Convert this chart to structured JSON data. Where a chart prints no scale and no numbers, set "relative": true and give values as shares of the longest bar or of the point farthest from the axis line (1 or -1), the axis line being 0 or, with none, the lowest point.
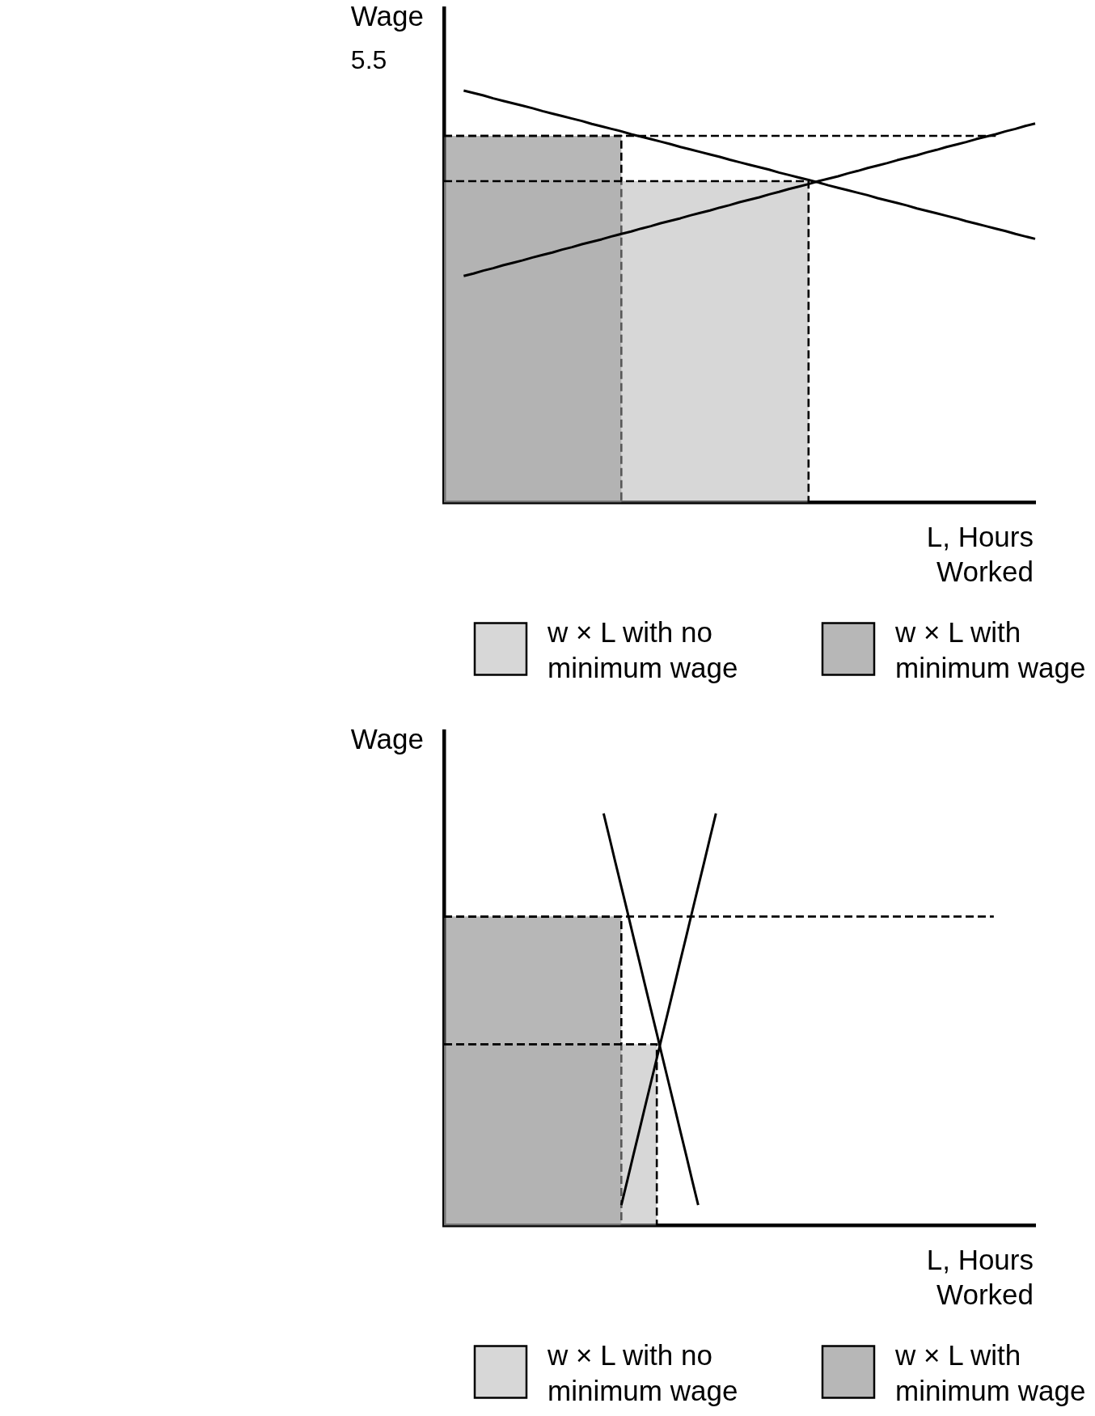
{
  "chart_data": [
    {
      "type": "line",
      "relative": true,
      "title": "5.5",
      "ylabel": "Wage",
      "xlabel": "L, Hours Worked",
      "legend": "bottom",
      "categories": [
        null,
        null,
        null,
        null,
        null,
        null,
        null,
        null,
        null,
        null,
        null,
        null,
        null,
        null,
        null,
        null,
        null,
        null,
        null,
        null,
        null,
        null,
        null,
        null,
        null,
        null,
        null,
        null,
        null,
        null,
        null,
        null,
        null,
        null,
        null,
        null,
        null,
        null,
        null,
        null,
        null,
        null,
        null,
        null,
        null,
        null,
        null,
        null,
        null,
        null,
        null,
        null,
        null,
        null,
        null,
        null,
        null,
        null,
        null,
        null,
        null
      ],
      "series": [
        {
          "name": "w × L with no minimum wage",
          "type": "area",
          "color": "#b0b0b0",
          "line_style": "dashed",
          "values": [
            0.78,
            0.78,
            0.78,
            0.78,
            0.78,
            0.78,
            0.78,
            0.78,
            0.78,
            0.78,
            0.78,
            0.78,
            0.78,
            0.78,
            0.78,
            0.78,
            0.78,
            0.78,
            0.78,
            0.78,
            0.78,
            0.78,
            0.78,
            0.78,
            0.78,
            0.78,
            0.78,
            0.78,
            0.78,
            0.78,
            0.78,
            0.78,
            0.78,
            0.78,
            0.78,
            0.78,
            0.78,
            0.78,
            0,
            null,
            null,
            null,
            null,
            null,
            null,
            null,
            null,
            null,
            null,
            null,
            null,
            null,
            null,
            null,
            null,
            null,
            null,
            null,
            null,
            null,
            null
          ]
        },
        {
          "name": "w × L with minimum wage",
          "type": "area",
          "color": "#707070",
          "line_style": "dashed",
          "values": [
            0.89,
            0.89,
            0.89,
            0.89,
            0.89,
            0.89,
            0.89,
            0.89,
            0.89,
            0.89,
            0.89,
            0.89,
            0.89,
            0.89,
            0.89,
            0.89,
            0.89,
            0.89,
            0.89,
            0,
            null,
            null,
            null,
            null,
            null,
            null,
            null,
            null,
            null,
            null,
            null,
            null,
            null,
            null,
            null,
            null,
            null,
            null,
            null,
            null,
            null,
            null,
            null,
            null,
            null,
            null,
            null,
            null,
            null,
            null,
            null,
            null,
            null,
            null,
            null,
            null,
            null,
            null,
            null,
            null,
            null
          ]
        },
        {
          "type": "line",
          "color": "#000000",
          "values": [
            null,
            null,
            1,
            0.994,
            0.988,
            0.981,
            0.975,
            0.969,
            0.963,
            0.957,
            0.95,
            0.944,
            0.938,
            0.932,
            0.926,
            0.919,
            0.913,
            0.907,
            0.901,
            0.894,
            0.888,
            0.882,
            0.876,
            0.87,
            0.863,
            0.857,
            0.851,
            0.845,
            0.839,
            0.832,
            0.826,
            0.82,
            0.814,
            0.808,
            0.801,
            0.795,
            0.789,
            0.783,
            0.777,
            0.77,
            0.764,
            0.758,
            0.752,
            0.746,
            0.739,
            0.733,
            0.727,
            0.721,
            0.714,
            0.708,
            0.702,
            0.696,
            0.69,
            0.683,
            0.677,
            0.671,
            0.665,
            0.659,
            0.652,
            0.646,
            0.64
          ]
        },
        {
          "type": "line",
          "color": "#000000",
          "values": [
            null,
            null,
            0.55,
            0.556,
            0.563,
            0.569,
            0.576,
            0.582,
            0.588,
            0.595,
            0.601,
            0.607,
            0.614,
            0.62,
            0.627,
            0.633,
            0.639,
            0.646,
            0.652,
            0.658,
            0.665,
            0.671,
            0.678,
            0.684,
            0.69,
            0.697,
            0.703,
            0.709,
            0.716,
            0.722,
            0.729,
            0.735,
            0.741,
            0.748,
            0.754,
            0.761,
            0.767,
            0.773,
            0.78,
            0.786,
            0.792,
            0.799,
            0.805,
            0.812,
            0.818,
            0.824,
            0.831,
            0.837,
            0.843,
            0.85,
            0.856,
            0.863,
            0.869,
            0.875,
            0.882,
            0.888,
            0.894,
            0.901,
            0.907,
            0.914,
            0.92
          ]
        },
        {
          "type": "line",
          "color": "#000000",
          "line_style": "dashed",
          "values": [
            0.89,
            0.89,
            0.89,
            0.89,
            0.89,
            0.89,
            0.89,
            0.89,
            0.89,
            0.89,
            0.89,
            0.89,
            0.89,
            0.89,
            0.89,
            0.89,
            0.89,
            0.89,
            0.89,
            0.89,
            0.89,
            0.89,
            0.89,
            0.89,
            0.89,
            0.89,
            0.89,
            0.89,
            0.89,
            0.89,
            0.89,
            0.89,
            0.89,
            0.89,
            0.89,
            0.89,
            0.89,
            0.89,
            0.89,
            0.89,
            0.89,
            0.89,
            0.89,
            0.89,
            0.89,
            0.89,
            0.89,
            0.89,
            0.89,
            0.89,
            0.89,
            0.89,
            0.89,
            0.89,
            0.89,
            0.89,
            0.89,
            null,
            null,
            null,
            null
          ]
        }
      ]
    },
    {
      "type": "line",
      "relative": true,
      "ylabel": "Wage",
      "xlabel": "L, Hours Worked",
      "legend": "bottom",
      "categories": [
        null,
        null,
        null,
        null,
        null,
        null,
        null,
        null,
        null,
        null,
        null,
        null,
        null,
        null,
        null,
        null,
        null,
        null,
        null,
        null,
        null,
        null,
        null,
        null,
        null,
        null,
        null,
        null,
        null,
        null,
        null,
        null,
        null,
        null,
        null,
        null,
        null,
        null,
        null,
        null,
        null,
        null,
        null,
        null,
        null,
        null,
        null,
        null,
        null,
        null,
        null,
        null,
        null,
        null,
        null,
        null,
        null,
        null,
        null,
        null,
        null,
        null,
        null,
        null,
        null,
        null,
        null,
        null,
        null,
        null,
        null,
        null,
        null,
        null,
        null,
        null,
        null,
        null,
        null,
        null,
        null,
        null,
        null,
        null,
        null,
        null,
        null,
        null,
        null,
        null,
        null,
        null,
        null,
        null,
        null,
        null,
        null,
        null,
        null,
        null,
        null
      ],
      "series": [
        {
          "name": "w × L with no minimum wage",
          "type": "area",
          "color": "#b0b0b0",
          "line_style": "dashed",
          "values": [
            0.44,
            0.44,
            0.44,
            0.44,
            0.44,
            0.44,
            0.44,
            0.44,
            0.44,
            0.44,
            0.44,
            0.44,
            0.44,
            0.44,
            0.44,
            0.44,
            0.44,
            0.44,
            0.44,
            0.44,
            0.44,
            0.44,
            0.44,
            0.44,
            0.44,
            0.44,
            0.44,
            0.44,
            0.44,
            0.44,
            0.44,
            0.44,
            0.44,
            0.44,
            0.44,
            0.44,
            0.44,
            0,
            null,
            null,
            null,
            null,
            null,
            null,
            null,
            null,
            null,
            null,
            null,
            null,
            null,
            null,
            null,
            null,
            null,
            null,
            null,
            null,
            null,
            null,
            null,
            null,
            null,
            null,
            null,
            null,
            null,
            null,
            null,
            null,
            null,
            null,
            null,
            null,
            null,
            null,
            null,
            null,
            null,
            null,
            null,
            null,
            null,
            null,
            null,
            null,
            null,
            null,
            null,
            null,
            null,
            null,
            null,
            null,
            null,
            null,
            null,
            null,
            null,
            null,
            null
          ]
        },
        {
          "name": "w × L with minimum wage",
          "type": "area",
          "color": "#707070",
          "line_style": "dashed",
          "values": [
            0.75,
            0.75,
            0.75,
            0.75,
            0.75,
            0.75,
            0.75,
            0.75,
            0.75,
            0.75,
            0.75,
            0.75,
            0.75,
            0.75,
            0.75,
            0.75,
            0.75,
            0.75,
            0.75,
            0.75,
            0.75,
            0.75,
            0.75,
            0.75,
            0.75,
            0.75,
            0.75,
            0.75,
            0.75,
            0.75,
            0.75,
            0,
            null,
            null,
            null,
            null,
            null,
            null,
            null,
            null,
            null,
            null,
            null,
            null,
            null,
            null,
            null,
            null,
            null,
            null,
            null,
            null,
            null,
            null,
            null,
            null,
            null,
            null,
            null,
            null,
            null,
            null,
            null,
            null,
            null,
            null,
            null,
            null,
            null,
            null,
            null,
            null,
            null,
            null,
            null,
            null,
            null,
            null,
            null,
            null,
            null,
            null,
            null,
            null,
            null,
            null,
            null,
            null,
            null,
            null,
            null,
            null,
            null,
            null,
            null,
            null,
            null,
            null,
            null,
            null,
            null
          ]
        },
        {
          "type": "line",
          "color": "#000000",
          "values": [
            null,
            null,
            null,
            null,
            null,
            null,
            null,
            null,
            null,
            null,
            null,
            null,
            null,
            null,
            null,
            null,
            null,
            null,
            null,
            null,
            null,
            null,
            null,
            null,
            null,
            null,
            null,
            1,
            0.941,
            0.881,
            0.822,
            0.763,
            0.703,
            0.644,
            0.584,
            0.525,
            0.466,
            0.406,
            0.347,
            0.288,
            0.228,
            0.169,
            0.109,
            0.05,
            null,
            null,
            null,
            null,
            null,
            null,
            null,
            null,
            null,
            null,
            null,
            null,
            null,
            null,
            null,
            null,
            null,
            null,
            null,
            null,
            null,
            null,
            null,
            null,
            null,
            null,
            null,
            null,
            null,
            null,
            null,
            null,
            null,
            null,
            null,
            null,
            null,
            null,
            null,
            null,
            null,
            null,
            null,
            null,
            null,
            null,
            null,
            null,
            null,
            null,
            null,
            null,
            null,
            null,
            null,
            null,
            null
          ]
        },
        {
          "type": "line",
          "color": "#000000",
          "values": [
            null,
            null,
            null,
            null,
            null,
            null,
            null,
            null,
            null,
            null,
            null,
            null,
            null,
            null,
            null,
            null,
            null,
            null,
            null,
            null,
            null,
            null,
            null,
            null,
            null,
            null,
            null,
            null,
            null,
            null,
            0.05,
            0.109,
            0.169,
            0.228,
            0.288,
            0.347,
            0.406,
            0.466,
            0.525,
            0.584,
            0.644,
            0.703,
            0.763,
            0.822,
            0.881,
            0.941,
            1,
            null,
            null,
            null,
            null,
            null,
            null,
            null,
            null,
            null,
            null,
            null,
            null,
            null,
            null,
            null,
            null,
            null,
            null,
            null,
            null,
            null,
            null,
            null,
            null,
            null,
            null,
            null,
            null,
            null,
            null,
            null,
            null,
            null,
            null,
            null,
            null,
            null,
            null,
            null,
            null,
            null,
            null,
            null,
            null,
            null,
            null,
            null,
            null,
            null,
            null,
            null,
            null,
            null,
            null
          ]
        },
        {
          "type": "line",
          "color": "#000000",
          "line_style": "dashed",
          "values": [
            0.75,
            0.75,
            0.75,
            0.75,
            0.75,
            0.75,
            0.75,
            0.75,
            0.75,
            0.75,
            0.75,
            0.75,
            0.75,
            0.75,
            0.75,
            0.75,
            0.75,
            0.75,
            0.75,
            0.75,
            0.75,
            0.75,
            0.75,
            0.75,
            0.75,
            0.75,
            0.75,
            0.75,
            0.75,
            0.75,
            0.75,
            0.75,
            0.75,
            0.75,
            0.75,
            0.75,
            0.75,
            0.75,
            0.75,
            0.75,
            0.75,
            0.75,
            0.75,
            0.75,
            0.75,
            0.75,
            0.75,
            0.75,
            0.75,
            0.75,
            0.75,
            0.75,
            0.75,
            0.75,
            0.75,
            0.75,
            0.75,
            0.75,
            0.75,
            0.75,
            0.75,
            0.75,
            0.75,
            0.75,
            0.75,
            0.75,
            0.75,
            0.75,
            0.75,
            0.75,
            0.75,
            0.75,
            0.75,
            0.75,
            0.75,
            0.75,
            0.75,
            0.75,
            0.75,
            0.75,
            0.75,
            0.75,
            0.75,
            0.75,
            0.75,
            0.75,
            0.75,
            0.75,
            0.75,
            0.75,
            0.75,
            0.75,
            0.75,
            0.75,
            null,
            null,
            null,
            null,
            null,
            null,
            null
          ]
        }
      ]
    }
  ]
}
